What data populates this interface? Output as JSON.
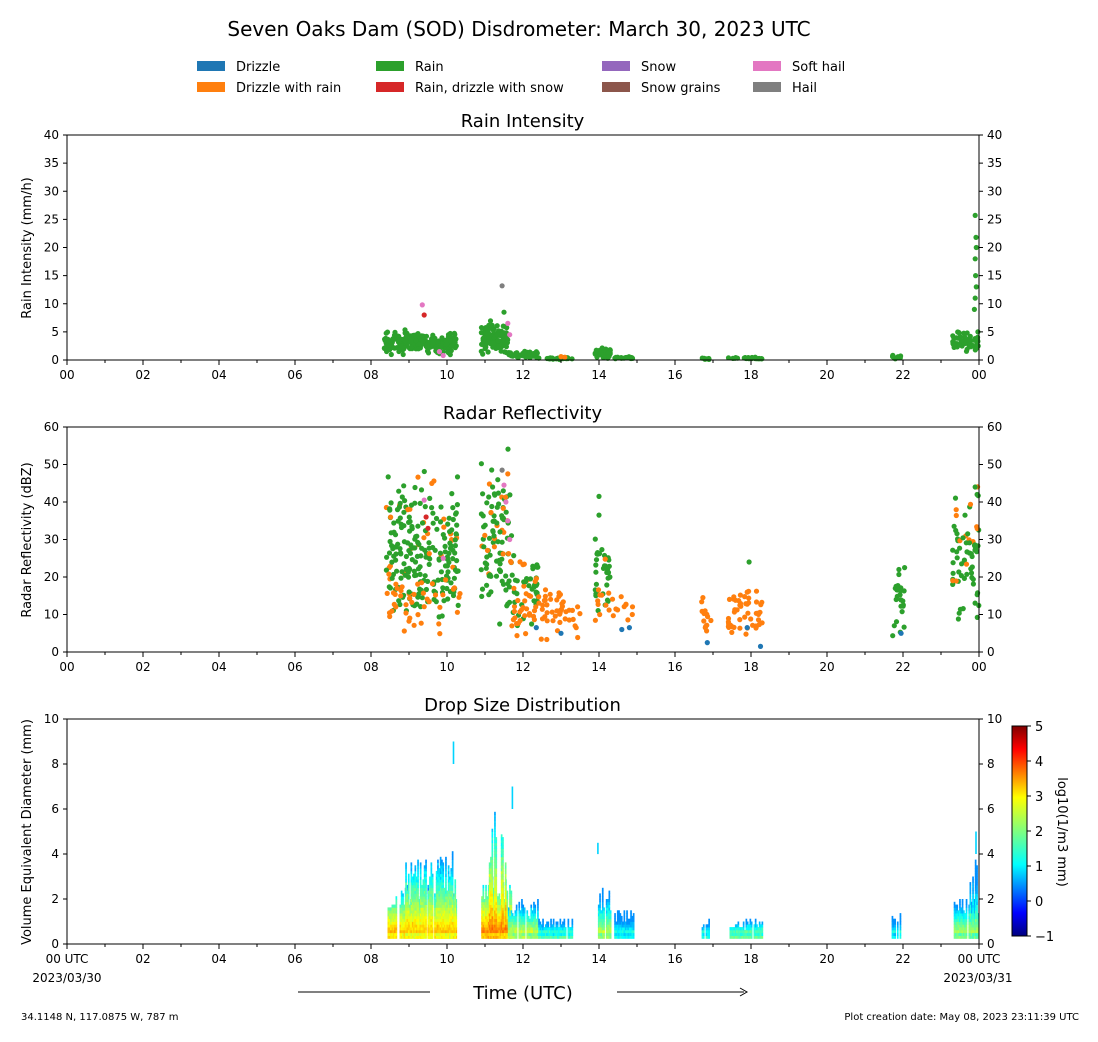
{
  "figure": {
    "title": "Seven Oaks Dam (SOD) Disdrometer: March 30, 2023 UTC",
    "xlabel": "Time (UTC)",
    "location": "34.1148 N, 117.0875 W, 787 m",
    "creation": "Plot creation date: May 08, 2023 23:11:39 UTC",
    "start_date": "2023/03/30",
    "end_date": "2023/03/31"
  },
  "legend": [
    {
      "name": "Drizzle",
      "color": "#1f77b4"
    },
    {
      "name": "Drizzle with rain",
      "color": "#ff7f0e"
    },
    {
      "name": "Rain",
      "color": "#2ca02c"
    },
    {
      "name": "Rain, drizzle with snow",
      "color": "#d62728"
    },
    {
      "name": "Snow",
      "color": "#9467bd"
    },
    {
      "name": "Snow grains",
      "color": "#8c564b"
    },
    {
      "name": "Soft hail",
      "color": "#e377c2"
    },
    {
      "name": "Hail",
      "color": "#7f7f7f"
    }
  ],
  "chart_data": [
    {
      "type": "scatter",
      "title": "Rain Intensity",
      "ylabel": "Rain Intensity (mm/h)",
      "xlim": [
        0,
        24
      ],
      "ylim": [
        0,
        40
      ],
      "yticks": [
        0,
        5,
        10,
        15,
        20,
        25,
        30,
        35,
        40
      ],
      "xtick_labels": [
        "00",
        "02",
        "04",
        "06",
        "08",
        "10",
        "12",
        "14",
        "16",
        "18",
        "20",
        "22",
        "00"
      ],
      "clusters": [
        {
          "x0": 8.35,
          "x1": 10.25,
          "y": 3.0,
          "n": 220
        },
        {
          "x0": 10.9,
          "x1": 11.6,
          "y": 4.0,
          "n": 110
        },
        {
          "x0": 11.6,
          "x1": 12.4,
          "y": 1.0,
          "n": 40
        },
        {
          "x0": 12.4,
          "x1": 13.3,
          "y": 0.3,
          "n": 30
        },
        {
          "x0": 13.9,
          "x1": 14.3,
          "y": 1.2,
          "n": 40
        },
        {
          "x0": 14.4,
          "x1": 14.9,
          "y": 0.4,
          "n": 15
        },
        {
          "x0": 16.7,
          "x1": 16.9,
          "y": 0.2,
          "n": 8
        },
        {
          "x0": 17.4,
          "x1": 18.3,
          "y": 0.3,
          "n": 30
        },
        {
          "x0": 21.7,
          "x1": 22.0,
          "y": 0.5,
          "n": 10
        },
        {
          "x0": 23.3,
          "x1": 24.0,
          "y": 3.0,
          "n": 60
        }
      ],
      "points": [
        {
          "x": 9.35,
          "y": 9.8,
          "c": "Soft hail"
        },
        {
          "x": 9.4,
          "y": 8.0,
          "c": "Rain, drizzle with snow"
        },
        {
          "x": 11.45,
          "y": 13.2,
          "c": "Hail"
        },
        {
          "x": 11.5,
          "y": 8.5,
          "c": "Rain"
        },
        {
          "x": 11.6,
          "y": 6.5,
          "c": "Soft hail"
        },
        {
          "x": 11.65,
          "y": 4.5,
          "c": "Soft hail"
        },
        {
          "x": 9.8,
          "y": 1.5,
          "c": "Soft hail"
        },
        {
          "x": 9.9,
          "y": 0.8,
          "c": "Soft hail"
        },
        {
          "x": 13.0,
          "y": 0.6,
          "c": "Drizzle with rain"
        },
        {
          "x": 13.1,
          "y": 0.5,
          "c": "Drizzle with rain"
        },
        {
          "x": 23.9,
          "y": 25.7,
          "c": "Rain"
        },
        {
          "x": 23.92,
          "y": 21.8,
          "c": "Rain"
        },
        {
          "x": 23.93,
          "y": 20.0,
          "c": "Rain"
        },
        {
          "x": 23.9,
          "y": 18.0,
          "c": "Rain"
        },
        {
          "x": 23.91,
          "y": 15.0,
          "c": "Rain"
        },
        {
          "x": 23.93,
          "y": 13.0,
          "c": "Rain"
        },
        {
          "x": 23.9,
          "y": 11.0,
          "c": "Rain"
        },
        {
          "x": 23.88,
          "y": 9.0,
          "c": "Rain"
        }
      ]
    },
    {
      "type": "scatter",
      "title": "Radar Reflectivity",
      "ylabel": "Radar Reflectivity (dBZ)",
      "xlim": [
        0,
        24
      ],
      "ylim": [
        0,
        60
      ],
      "yticks": [
        0,
        10,
        20,
        30,
        40,
        50,
        60
      ],
      "xtick_labels": [
        "00",
        "02",
        "04",
        "06",
        "08",
        "10",
        "12",
        "14",
        "16",
        "18",
        "20",
        "22",
        "00"
      ],
      "clusters": [
        {
          "x0": 8.4,
          "x1": 10.3,
          "y": 27,
          "n": 240
        },
        {
          "x0": 8.4,
          "x1": 10.4,
          "y": 13,
          "n": 40,
          "c": "Drizzle with rain"
        },
        {
          "x0": 10.9,
          "x1": 11.7,
          "y": 31,
          "n": 100
        },
        {
          "x0": 11.6,
          "x1": 12.4,
          "y": 17,
          "n": 50
        },
        {
          "x0": 11.7,
          "x1": 13.5,
          "y": 11,
          "n": 70,
          "c": "Drizzle with rain"
        },
        {
          "x0": 13.9,
          "x1": 14.3,
          "y": 20,
          "n": 35
        },
        {
          "x0": 13.9,
          "x1": 14.9,
          "y": 12,
          "n": 20,
          "c": "Drizzle with rain"
        },
        {
          "x0": 16.7,
          "x1": 16.95,
          "y": 10,
          "n": 14,
          "c": "Drizzle with rain"
        },
        {
          "x0": 17.4,
          "x1": 18.3,
          "y": 11,
          "n": 50,
          "c": "Drizzle with rain"
        },
        {
          "x0": 21.7,
          "x1": 22.05,
          "y": 13,
          "n": 25
        },
        {
          "x0": 23.3,
          "x1": 24.0,
          "y": 26,
          "n": 70
        }
      ],
      "points": [
        {
          "x": 11.45,
          "y": 48.5,
          "c": "Hail"
        },
        {
          "x": 11.5,
          "y": 44.5,
          "c": "Soft hail"
        },
        {
          "x": 11.2,
          "y": 44.0,
          "c": "Rain"
        },
        {
          "x": 11.55,
          "y": 40.0,
          "c": "Soft hail"
        },
        {
          "x": 11.6,
          "y": 35.0,
          "c": "Soft hail"
        },
        {
          "x": 11.65,
          "y": 30.0,
          "c": "Soft hail"
        },
        {
          "x": 9.4,
          "y": 40.5,
          "c": "Soft hail"
        },
        {
          "x": 9.45,
          "y": 36.0,
          "c": "Rain, drizzle with snow"
        },
        {
          "x": 9.5,
          "y": 33.0,
          "c": "Rain, drizzle with snow"
        },
        {
          "x": 9.9,
          "y": 25.0,
          "c": "Soft hail"
        },
        {
          "x": 14.0,
          "y": 41.5,
          "c": "Rain"
        },
        {
          "x": 14.0,
          "y": 36.5,
          "c": "Rain"
        },
        {
          "x": 12.35,
          "y": 6.5,
          "c": "Drizzle"
        },
        {
          "x": 13.0,
          "y": 5.0,
          "c": "Drizzle"
        },
        {
          "x": 14.6,
          "y": 6.0,
          "c": "Drizzle"
        },
        {
          "x": 14.8,
          "y": 6.5,
          "c": "Drizzle"
        },
        {
          "x": 16.85,
          "y": 2.5,
          "c": "Drizzle"
        },
        {
          "x": 17.9,
          "y": 6.5,
          "c": "Drizzle"
        },
        {
          "x": 18.25,
          "y": 1.5,
          "c": "Drizzle"
        },
        {
          "x": 21.95,
          "y": 5.0,
          "c": "Drizzle"
        },
        {
          "x": 17.95,
          "y": 24.0,
          "c": "Rain"
        },
        {
          "x": 23.9,
          "y": 44.0,
          "c": "Rain"
        },
        {
          "x": 23.95,
          "y": 42.0,
          "c": "Rain"
        }
      ]
    },
    {
      "type": "heatmap",
      "title": "Drop Size Distribution",
      "ylabel": "Volume Equivalent Diameter (mm)",
      "xlim": [
        0,
        24
      ],
      "ylim": [
        0,
        10
      ],
      "yticks": [
        0,
        2,
        4,
        6,
        8,
        10
      ],
      "xtick_labels": [
        "00 UTC",
        "02",
        "04",
        "06",
        "08",
        "10",
        "12",
        "14",
        "16",
        "18",
        "20",
        "22",
        "00 UTC"
      ],
      "colorbar": {
        "label": "log10(1/m3 mm)",
        "min": -1,
        "max": 5,
        "ticks": [
          -1,
          0,
          1,
          2,
          3,
          4,
          5
        ]
      },
      "blocks": [
        {
          "x0": 8.4,
          "x1": 10.25,
          "top": 2.6,
          "peak": 3.8
        },
        {
          "x0": 8.9,
          "x1": 10.2,
          "top": 4.1,
          "peak": 3.5
        },
        {
          "x0": 10.9,
          "x1": 11.7,
          "top": 3.0,
          "peak": 4.0
        },
        {
          "x0": 11.1,
          "x1": 11.55,
          "top": 6.0,
          "peak": 3.8
        },
        {
          "x0": 11.6,
          "x1": 12.4,
          "top": 2.0,
          "peak": 3.2
        },
        {
          "x0": 12.4,
          "x1": 13.3,
          "top": 1.1,
          "peak": 3.0
        },
        {
          "x0": 13.9,
          "x1": 14.3,
          "top": 2.5,
          "peak": 3.0
        },
        {
          "x0": 14.4,
          "x1": 14.9,
          "top": 1.5,
          "peak": 2.5
        },
        {
          "x0": 16.7,
          "x1": 16.9,
          "top": 1.1,
          "peak": 2.8
        },
        {
          "x0": 17.4,
          "x1": 18.3,
          "top": 1.1,
          "peak": 3.2
        },
        {
          "x0": 21.7,
          "x1": 22.0,
          "top": 1.4,
          "peak": 2.5
        },
        {
          "x0": 23.3,
          "x1": 24.0,
          "top": 2.2,
          "peak": 3.0
        },
        {
          "x0": 23.75,
          "x1": 23.95,
          "top": 4.0,
          "peak": 2.6
        }
      ],
      "spikes": [
        {
          "x": 10.15,
          "y0": 8.0,
          "y1": 9.0,
          "v": 1.0
        },
        {
          "x": 11.7,
          "y0": 6.0,
          "y1": 7.0,
          "v": 1.0
        },
        {
          "x": 13.95,
          "y0": 4.0,
          "y1": 4.5,
          "v": 1.0
        },
        {
          "x": 23.9,
          "y0": 4.0,
          "y1": 5.0,
          "v": 1.0
        }
      ]
    }
  ]
}
